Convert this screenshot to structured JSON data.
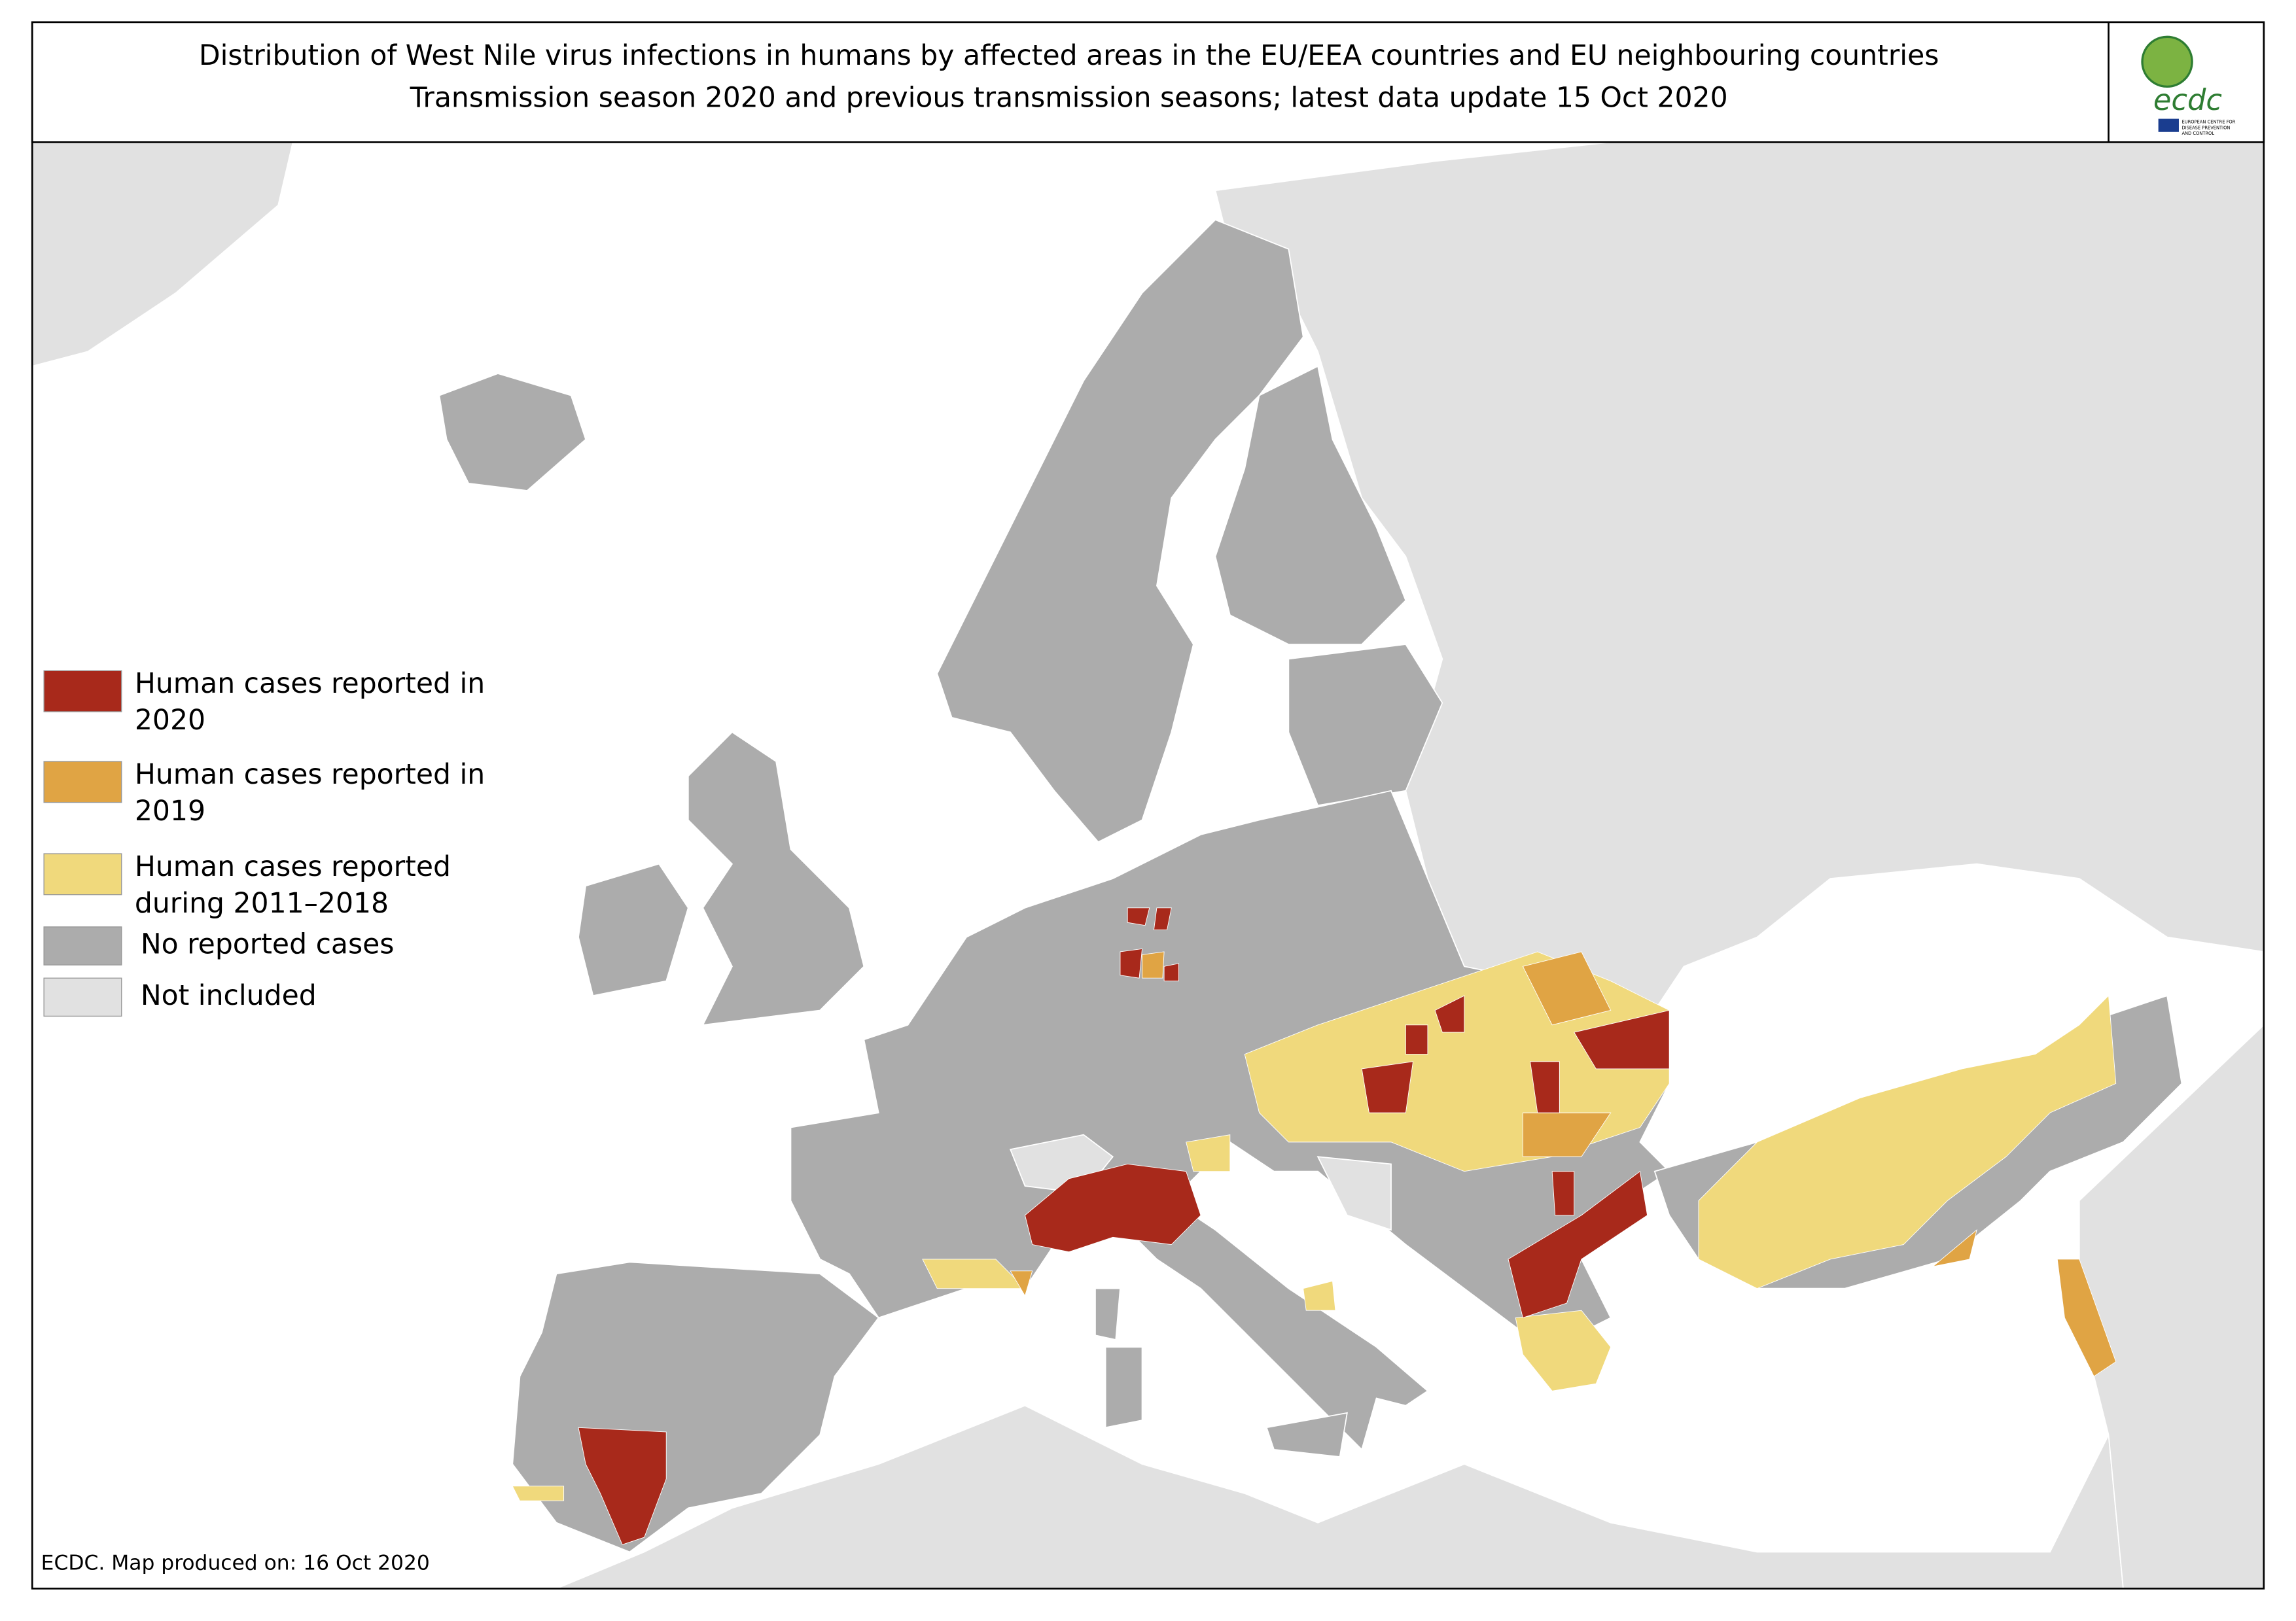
{
  "header": {
    "title_lines": [
      "Distribution of West Nile virus infections in humans by affected areas in the EU/EEA countries and EU neighbouring countries",
      "Transmission season 2020 and previous transmission seasons; latest data update 15 Oct 2020"
    ]
  },
  "logo": {
    "text": "ecdc",
    "subtitle_lines": [
      "EUROPEAN CENTRE FOR",
      "DISEASE PREVENTION",
      "AND CONTROL"
    ]
  },
  "legend": {
    "items": [
      {
        "lines": [
          "Human cases reported in",
          "2020"
        ],
        "color": "#a8291b"
      },
      {
        "lines": [
          "Human cases reported in",
          "2019"
        ],
        "color": "#e0a444"
      },
      {
        "lines": [
          "Human cases reported",
          "during 2011–2018"
        ],
        "color": "#f0d97c"
      },
      {
        "lines": [
          "No reported cases"
        ],
        "color": "#acacac"
      },
      {
        "lines": [
          "Not included"
        ],
        "color": "#e1e1e1"
      }
    ]
  },
  "footer": {
    "text": "ECDC. Map produced on: 16 Oct 2020"
  }
}
